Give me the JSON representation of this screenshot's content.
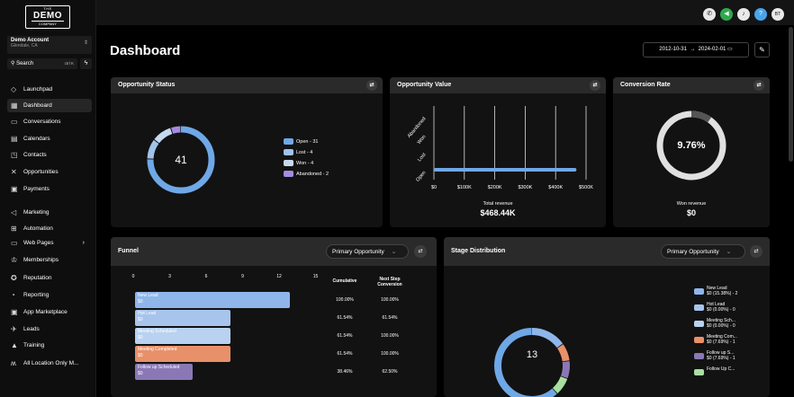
{
  "logo": {
    "t1": "THE",
    "t2": "DEMO",
    "t3": "COMPANY"
  },
  "account": {
    "name": "Demo Account",
    "location": "Glendale, CA"
  },
  "search": {
    "label": "Search",
    "shortcut": "ctrl K"
  },
  "nav": [
    {
      "label": "Launchpad",
      "icon": "◇"
    },
    {
      "label": "Dashboard",
      "icon": "▦"
    },
    {
      "label": "Conversations",
      "icon": "▭"
    },
    {
      "label": "Calendars",
      "icon": "▤"
    },
    {
      "label": "Contacts",
      "icon": "◳"
    },
    {
      "label": "Opportunities",
      "icon": "✕"
    },
    {
      "label": "Payments",
      "icon": "▣"
    },
    {
      "label": "Marketing",
      "icon": "◁"
    },
    {
      "label": "Automation",
      "icon": "⊞"
    },
    {
      "label": "Web Pages",
      "icon": "▭"
    },
    {
      "label": "Memberships",
      "icon": "♔"
    },
    {
      "label": "Reputation",
      "icon": "✪"
    },
    {
      "label": "Reporting",
      "icon": "◔"
    },
    {
      "label": "App Marketplace",
      "icon": "▣"
    },
    {
      "label": "Leads",
      "icon": "✈"
    },
    {
      "label": "Training",
      "icon": "▲"
    },
    {
      "label": "All Location Only M...",
      "icon": "ʍ"
    }
  ],
  "topbar": {
    "avatar": "BT"
  },
  "page": {
    "title": "Dashboard",
    "date_start": "2012-10-31",
    "date_end": "2024-02-01",
    "arrow": "→"
  },
  "opportunity_status": {
    "title": "Opportunity Status",
    "total": "41",
    "legend": [
      {
        "label": "Open - 31",
        "color": "#6fa8e6"
      },
      {
        "label": "Lost - 4",
        "color": "#9fc3ea"
      },
      {
        "label": "Won - 4",
        "color": "#c5d9ef"
      },
      {
        "label": "Abandoned - 2",
        "color": "#a58be0"
      }
    ]
  },
  "opportunity_value": {
    "title": "Opportunity Value",
    "categories": [
      "Abandoned",
      "Won",
      "Lost",
      "Open"
    ],
    "ticks": [
      "$0",
      "$100K",
      "$200K",
      "$300K",
      "$400K",
      "$500K"
    ],
    "total_label": "Total revenue",
    "total": "$468.44K"
  },
  "conversion_rate": {
    "title": "Conversion Rate",
    "value": "9.76%",
    "won_label": "Won revenue",
    "won_value": "$0"
  },
  "funnel": {
    "title": "Funnel",
    "dropdown": "Primary Opportunity",
    "axis": [
      "0",
      "3",
      "6",
      "9",
      "12",
      "15"
    ],
    "col1": "Cumulative",
    "col2": "Next Step Conversion",
    "rows": [
      {
        "name": "New Lead",
        "value": "$0",
        "cum": "100.00%",
        "next": "100.00%",
        "color": "#8fb6ea",
        "width": 172
      },
      {
        "name": "Hot Lead",
        "value": "$0",
        "cum": "61.54%",
        "next": "61.54%",
        "color": "#a7c4ec",
        "width": 106
      },
      {
        "name": "Meeting Scheduled",
        "value": "$0",
        "cum": "61.54%",
        "next": "100.00%",
        "color": "#b9d2f1",
        "width": 106
      },
      {
        "name": "Meeting Completed",
        "value": "$0",
        "cum": "61.54%",
        "next": "100.00%",
        "color": "#e8906a",
        "width": 106
      },
      {
        "name": "Follow up Scheduled",
        "value": "$0",
        "cum": "38.46%",
        "next": "62.50%",
        "color": "#8a78b6",
        "width": 64
      }
    ]
  },
  "stage": {
    "title": "Stage Distribution",
    "dropdown": "Primary Opportunity",
    "total": "13",
    "legend": [
      {
        "name": "New Lead",
        "value": "$0 (15.38%) - 2",
        "color": "#8fb6ea"
      },
      {
        "name": "Hot Lead",
        "value": "$0 (0.00%) - 0",
        "color": "#a7c4ec"
      },
      {
        "name": "Meeting Sch...",
        "value": "$0 (0.00%) - 0",
        "color": "#b9d2f1"
      },
      {
        "name": "Meeting Com...",
        "value": "$0 (7.69%) - 1",
        "color": "#e8906a"
      },
      {
        "name": "Follow up S...",
        "value": "$0 (7.69%) - 1",
        "color": "#8a78b6"
      },
      {
        "name": "Follow Up C...",
        "value": "",
        "color": "#a8e0a0"
      }
    ]
  }
}
